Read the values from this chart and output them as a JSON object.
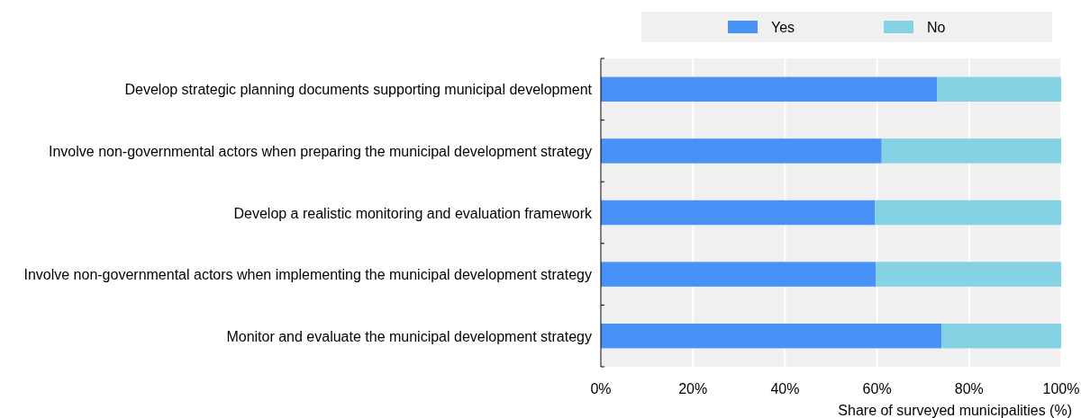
{
  "chart_data": {
    "type": "bar",
    "orientation": "horizontal",
    "stacked": true,
    "xlabel": "Share of surveyed municipalities (%)",
    "categories": [
      "Develop strategic planning documents supporting municipal development",
      "Involve non-governmental actors when preparing the municipal development strategy",
      "Develop a realistic monitoring and evaluation framework",
      "Involve non-governmental actors when implementing the municipal development strategy",
      "Monitor and evaluate the municipal development strategy"
    ],
    "series": [
      {
        "name": "Yes",
        "color": "#4891f6",
        "values": [
          73,
          61,
          59.5,
          59.7,
          74
        ]
      },
      {
        "name": "No",
        "color": "#84d2e4",
        "values": [
          27,
          39,
          40.5,
          40.3,
          26
        ]
      }
    ],
    "xlim": [
      0,
      100
    ],
    "xticks": [
      {
        "value": 0,
        "label": "0%"
      },
      {
        "value": 20,
        "label": "20%"
      },
      {
        "value": 40,
        "label": "40%"
      },
      {
        "value": 60,
        "label": "60%"
      },
      {
        "value": 80,
        "label": "80%"
      },
      {
        "value": 100,
        "label": "100%"
      }
    ],
    "grid": "x",
    "legend": "top"
  }
}
